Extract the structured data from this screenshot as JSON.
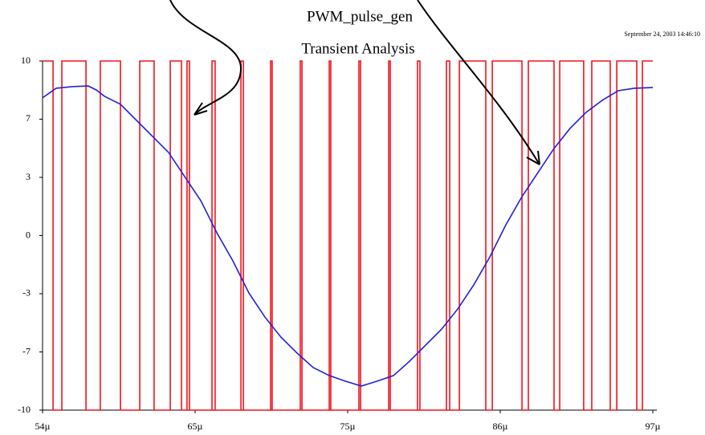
{
  "chart_data": {
    "type": "line",
    "title": "PWM_pulse_gen",
    "subtitle": "Transient Analysis",
    "timestamp": "September 24, 2003 14:46:10",
    "xlim": [
      54,
      97
    ],
    "xticks": [
      {
        "value": 54,
        "label": "54µ"
      },
      {
        "value": 64.75,
        "label": "65µ"
      },
      {
        "value": 75.5,
        "label": "75µ"
      },
      {
        "value": 86.25,
        "label": "86µ"
      },
      {
        "value": 97,
        "label": "97µ"
      }
    ],
    "ylim": [
      -10,
      10
    ],
    "yticks": [
      {
        "value": -10,
        "label": "-10"
      },
      {
        "value": -6.667,
        "label": "-7"
      },
      {
        "value": -3.333,
        "label": "-3"
      },
      0,
      {
        "value": 3.333,
        "label": "3"
      },
      {
        "value": 6.667,
        "label": "7"
      },
      10
    ],
    "series": [
      {
        "color": "#f0141e",
        "x": [
          54,
          54.74,
          54.74,
          55.36,
          55.36,
          57.06,
          57.06,
          58.07,
          58.07,
          59.49,
          59.49,
          60.85,
          60.85,
          61.86,
          61.86,
          63.0,
          63.0,
          63.79,
          63.79,
          64.18,
          64.18,
          64.35,
          64.35,
          65.94,
          65.94,
          66.16,
          66.16,
          67.98,
          67.98,
          68.15,
          68.15,
          70.07,
          70.07,
          70.18,
          70.18,
          72.16,
          72.16,
          72.28,
          72.28,
          74.2,
          74.2,
          74.31,
          74.31,
          76.29,
          76.29,
          76.41,
          76.41,
          78.39,
          78.39,
          78.5,
          78.5,
          80.42,
          80.42,
          80.59,
          80.59,
          82.46,
          82.46,
          82.69,
          82.69,
          83.37,
          83.37,
          85.23,
          85.23,
          85.69,
          85.69,
          87.78,
          87.78,
          88.23,
          88.23,
          90.04,
          90.04,
          90.44,
          90.44,
          92.13,
          92.13,
          92.7,
          92.7,
          94.0,
          94.0,
          94.46,
          94.46,
          95.87,
          95.87,
          96.27,
          96.27,
          97
        ],
        "values": [
          10,
          10,
          -10,
          -10,
          10,
          10,
          -10,
          -10,
          10,
          10,
          -10,
          -10,
          10,
          10,
          -10,
          -10,
          10,
          10,
          -10,
          -10,
          10,
          10,
          -10,
          -10,
          10,
          10,
          -10,
          -10,
          10,
          10,
          -10,
          -10,
          10,
          10,
          -10,
          -10,
          10,
          10,
          -10,
          -10,
          10,
          10,
          -10,
          -10,
          10,
          10,
          -10,
          -10,
          10,
          10,
          -10,
          -10,
          10,
          10,
          -10,
          -10,
          10,
          10,
          -10,
          -10,
          10,
          10,
          -10,
          -10,
          10,
          10,
          -10,
          -10,
          10,
          10,
          -10,
          -10,
          10,
          10,
          -10,
          -10,
          10,
          10,
          -10,
          -10,
          10,
          10,
          -10,
          -10,
          10,
          10
        ]
      },
      {
        "color": "#2020dc",
        "x": [
          54,
          54.96,
          56.09,
          57.22,
          57.79,
          58.36,
          59.49,
          60.62,
          61.75,
          62.88,
          64.01,
          65.15,
          66.28,
          67.41,
          68.54,
          69.67,
          70.8,
          71.94,
          73.07,
          74.2,
          75.33,
          76.46,
          77.59,
          78.73,
          79.86,
          80.99,
          82.12,
          83.25,
          84.38,
          85.52,
          86.65,
          87.78,
          88.91,
          90.04,
          91.17,
          92.3,
          93.44,
          94.57,
          95.7,
          97
        ],
        "values": [
          7.89,
          8.44,
          8.53,
          8.57,
          8.34,
          7.98,
          7.52,
          6.6,
          5.68,
          4.76,
          3.38,
          2.0,
          0.16,
          -1.45,
          -3.29,
          -4.67,
          -5.82,
          -6.74,
          -7.56,
          -8.02,
          -8.34,
          -8.62,
          -8.34,
          -8.02,
          -7.2,
          -6.28,
          -5.36,
          -4.21,
          -2.83,
          -1.22,
          0.62,
          2.23,
          3.61,
          4.99,
          6.14,
          7.06,
          7.75,
          8.3,
          8.44,
          8.48
        ]
      }
    ]
  }
}
